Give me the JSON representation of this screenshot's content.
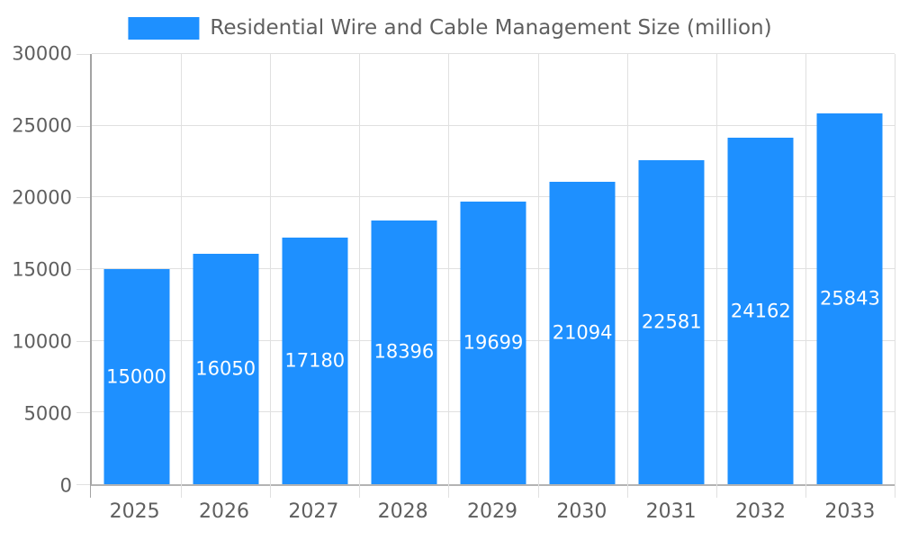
{
  "chart_data": {
    "type": "bar",
    "title": "Residential Wire and Cable Management Size (million)",
    "categories": [
      "2025",
      "2026",
      "2027",
      "2028",
      "2029",
      "2030",
      "2031",
      "2032",
      "2033"
    ],
    "values": [
      15000,
      16050,
      17180,
      18396,
      19699,
      21094,
      22581,
      24162,
      25843
    ],
    "value_labels": [
      "15000",
      "16050",
      "17180",
      "18396",
      "19699",
      "21094",
      "22581",
      "24162",
      "25843"
    ],
    "xlabel": "",
    "ylabel": "",
    "ylim": [
      0,
      30000
    ],
    "yticks": [
      0,
      5000,
      10000,
      15000,
      20000,
      25000,
      30000
    ],
    "ytick_labels": [
      "0",
      "5000",
      "10000",
      "15000",
      "20000",
      "25000",
      "30000"
    ],
    "grid": true,
    "legend_position": "top-center",
    "colors": {
      "bar": "#1e90ff",
      "value_label": "#ffffff",
      "grid": "#e0e0e0",
      "axis": "#a3a3a3",
      "tick_label": "#5f5f5f",
      "background": "#ffffff"
    }
  }
}
